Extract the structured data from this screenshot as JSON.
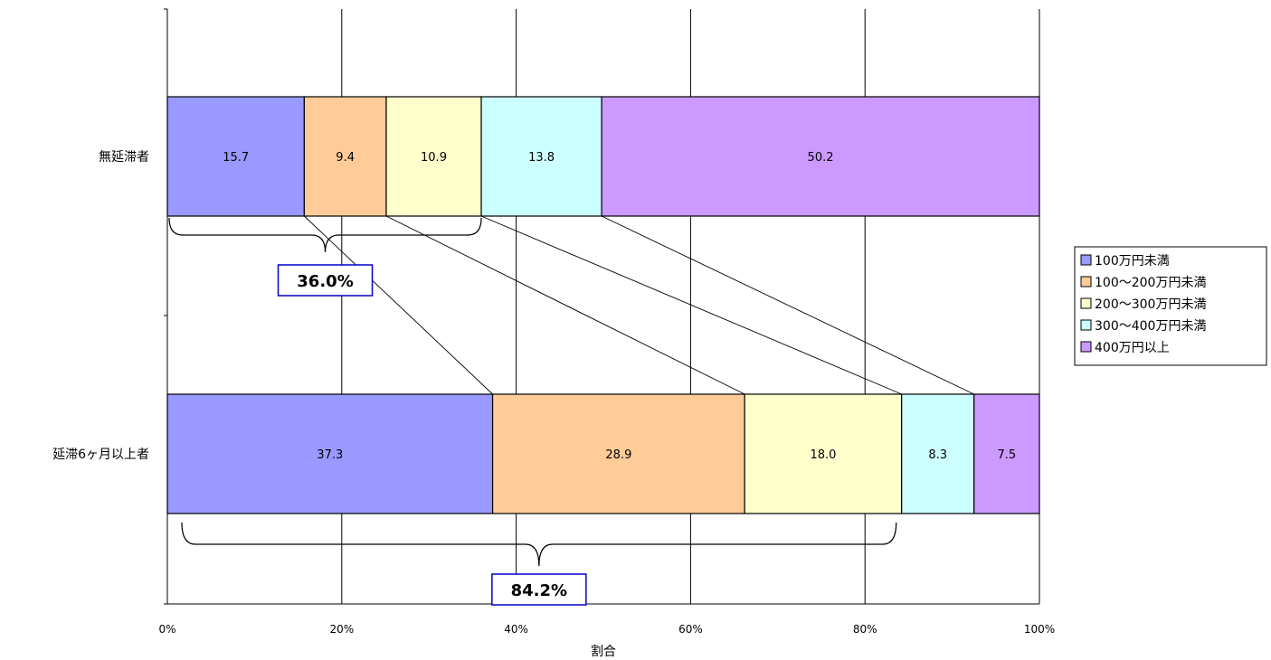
{
  "chart_data": {
    "type": "bar",
    "orientation": "horizontal",
    "stacked": true,
    "categories": [
      "無延滞者",
      "延滞6ヶ月以上者"
    ],
    "series": [
      {
        "name": "100万円未満",
        "values": [
          15.7,
          37.3
        ],
        "color": "#9999ff"
      },
      {
        "name": "100～200万円未満",
        "values": [
          9.4,
          28.9
        ],
        "color": "#ffcc99"
      },
      {
        "name": "200～300万円未満",
        "values": [
          10.9,
          18.0
        ],
        "color": "#ffffcc"
      },
      {
        "name": "300～400万円未満",
        "values": [
          13.8,
          8.3
        ],
        "color": "#ccffff"
      },
      {
        "name": "400万円以上",
        "values": [
          50.2,
          7.5
        ],
        "color": "#cc99ff"
      }
    ],
    "data_labels": [
      [
        "15.7",
        "9.4",
        "10.9",
        "13.8",
        "50.2"
      ],
      [
        "37.3",
        "28.9",
        "18.0",
        "8.3",
        "7.5"
      ]
    ],
    "x_ticks": [
      "0%",
      "20%",
      "40%",
      "60%",
      "80%",
      "100%"
    ],
    "xlim": [
      0,
      100
    ],
    "xlabel": "割合",
    "ylabel": "",
    "title": "",
    "grid": true,
    "legend": "right",
    "annotations": [
      {
        "text": "36.0%",
        "category": "無延滞者",
        "span_start": 0,
        "span_end": 36.0
      },
      {
        "text": "84.2%",
        "category": "延滞6ヶ月以上者",
        "span_start": 0,
        "span_end": 84.2
      }
    ],
    "annotation_border_color": "#0000cc"
  }
}
